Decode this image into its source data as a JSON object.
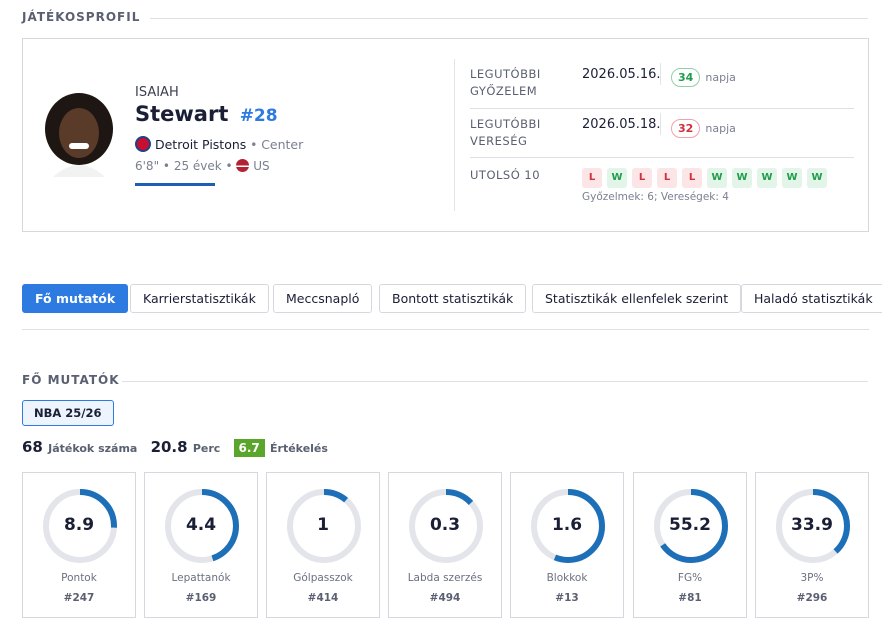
{
  "section_title": "JÁTÉKOSPROFIL",
  "player": {
    "first_name": "ISAIAH",
    "last_name": "Stewart",
    "number": "#28",
    "team": "Detroit Pistons",
    "position": "Center",
    "height": "6'8\"",
    "age": "25 évek",
    "country": "US"
  },
  "summary": {
    "last_win": {
      "label": "LEGUTÓBBI GYŐZELEM",
      "date": "2026.05.16.",
      "days": 34,
      "days_unit": "napja"
    },
    "last_loss": {
      "label": "LEGUTÓBBI VERESÉG",
      "date": "2026.05.18.",
      "days": 32,
      "days_unit": "napja"
    },
    "last10": {
      "label": "UTOLSÓ 10",
      "results": [
        "L",
        "W",
        "L",
        "L",
        "L",
        "W",
        "W",
        "W",
        "W",
        "W"
      ],
      "record": "Győzelmek: 6; Vereségek: 4"
    }
  },
  "tabs": [
    "Fő mutatók",
    "Karrierstatisztikák",
    "Meccsnapló",
    "Bontott statisztikák",
    "Statisztikák ellenfelek szerint",
    "Haladó statisztikák"
  ],
  "main_stats": {
    "title": "FŐ MUTATÓK",
    "season": "NBA 25/26",
    "games": 68,
    "games_label": "Játékok száma",
    "minutes": 20.8,
    "minutes_label": "Perc",
    "rating": 6.7,
    "rating_label": "Értékelés",
    "cards": [
      {
        "value": 8.9,
        "label": "Pontok",
        "rank": "#247"
      },
      {
        "value": 4.4,
        "label": "Lepattanók",
        "rank": "#169"
      },
      {
        "value": 1,
        "label": "Gólpasszok",
        "rank": "#414"
      },
      {
        "value": 0.3,
        "label": "Labda szerzés",
        "rank": "#494"
      },
      {
        "value": 1.6,
        "label": "Blokkok",
        "rank": "#13"
      },
      {
        "value": 55.2,
        "label": "FG%",
        "rank": "#81"
      },
      {
        "value": 33.9,
        "label": "3P%",
        "rank": "#296"
      }
    ]
  }
}
